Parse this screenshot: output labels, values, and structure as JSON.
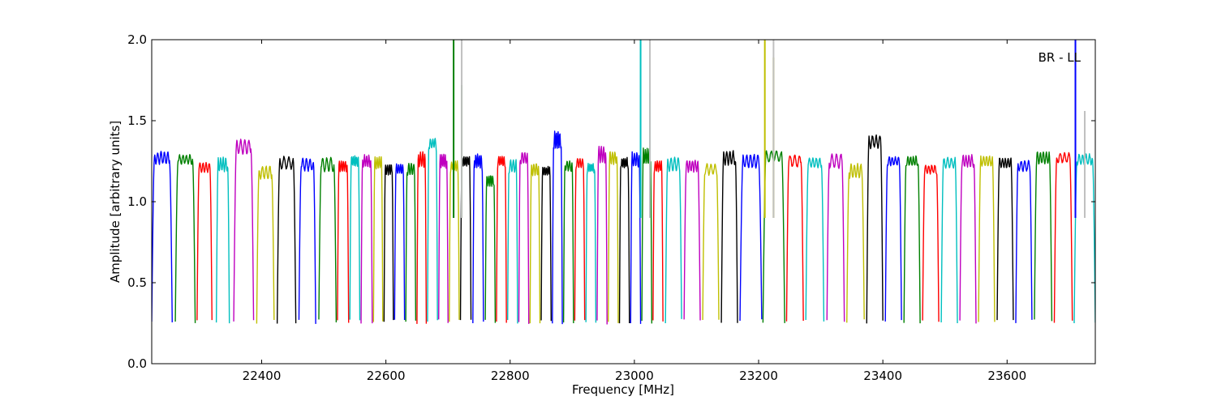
{
  "chart_data": {
    "type": "line",
    "annotation": "BR - LL",
    "xlabel": "Frequency [MHz]",
    "ylabel": "Amplitude [arbitrary units]",
    "xlim": [
      22223,
      23742
    ],
    "ylim": [
      0.0,
      2.0
    ],
    "x_ticks": [
      22400,
      22600,
      22800,
      23000,
      23200,
      23400,
      23600
    ],
    "x_tick_labels": [
      "22400",
      "22600",
      "22800",
      "23000",
      "23200",
      "23400",
      "23600"
    ],
    "y_ticks": [
      0.0,
      0.5,
      1.0,
      1.5,
      2.0
    ],
    "y_tick_labels": [
      "0.0",
      "0.5",
      "1.0",
      "1.5",
      "2.0"
    ],
    "grid": false,
    "colors": [
      "#0000ff",
      "#008000",
      "#ff0000",
      "#00bfbf",
      "#bf00bf",
      "#bfbf00",
      "#000000"
    ],
    "spike_color": "#c0c0c0",
    "sub_bands": [
      [
        22223,
        22256,
        1.27
      ],
      [
        22261,
        22293,
        1.26
      ],
      [
        22296,
        22320,
        1.21
      ],
      [
        22327,
        22348,
        1.23
      ],
      [
        22355,
        22387,
        1.34
      ],
      [
        22392,
        22420,
        1.18
      ],
      [
        22425,
        22455,
        1.24
      ],
      [
        22460,
        22487,
        1.23
      ],
      [
        22492,
        22520,
        1.23
      ],
      [
        22522,
        22540,
        1.22
      ],
      [
        22542,
        22558,
        1.25
      ],
      [
        22560,
        22578,
        1.25
      ],
      [
        22580,
        22595,
        1.24
      ],
      [
        22597,
        22612,
        1.2
      ],
      [
        22614,
        22630,
        1.2
      ],
      [
        22632,
        22648,
        1.2
      ],
      [
        22650,
        22665,
        1.26
      ],
      [
        22667,
        22683,
        1.36
      ],
      [
        22685,
        22700,
        1.25
      ],
      [
        22702,
        22718,
        1.22
      ],
      [
        22720,
        22737,
        1.25
      ],
      [
        22740,
        22757,
        1.25
      ],
      [
        22760,
        22776,
        1.13
      ],
      [
        22778,
        22794,
        1.25
      ],
      [
        22796,
        22812,
        1.22
      ],
      [
        22814,
        22830,
        1.27
      ],
      [
        22832,
        22848,
        1.2
      ],
      [
        22850,
        22866,
        1.19
      ],
      [
        22868,
        22884,
        1.38
      ],
      [
        22886,
        22902,
        1.22
      ],
      [
        22904,
        22920,
        1.24
      ],
      [
        22922,
        22938,
        1.21
      ],
      [
        22940,
        22956,
        1.29
      ],
      [
        22958,
        22974,
        1.27
      ],
      [
        22976,
        22992,
        1.24
      ],
      [
        22994,
        23010,
        1.26
      ],
      [
        23012,
        23028,
        1.28
      ],
      [
        23030,
        23046,
        1.22
      ],
      [
        23050,
        23076,
        1.23
      ],
      [
        23080,
        23106,
        1.22
      ],
      [
        23110,
        23136,
        1.2
      ],
      [
        23140,
        23166,
        1.27
      ],
      [
        23170,
        23205,
        1.25
      ],
      [
        23207,
        23242,
        1.28
      ],
      [
        23245,
        23272,
        1.25
      ],
      [
        23276,
        23305,
        1.24
      ],
      [
        23310,
        23338,
        1.25
      ],
      [
        23342,
        23370,
        1.19
      ],
      [
        23374,
        23400,
        1.37
      ],
      [
        23404,
        23430,
        1.25
      ],
      [
        23434,
        23460,
        1.25
      ],
      [
        23464,
        23490,
        1.2
      ],
      [
        23494,
        23520,
        1.24
      ],
      [
        23524,
        23550,
        1.25
      ],
      [
        23554,
        23580,
        1.25
      ],
      [
        23584,
        23610,
        1.24
      ],
      [
        23614,
        23640,
        1.22
      ],
      [
        23644,
        23672,
        1.27
      ],
      [
        23676,
        23705,
        1.27
      ],
      [
        23708,
        23742,
        1.26
      ]
    ],
    "spikes": [
      {
        "x": 22709,
        "y": 2.0,
        "color": "#008000"
      },
      {
        "x": 22722,
        "y": 1.72,
        "color": "#008000"
      },
      {
        "x": 22722,
        "y": 2.0,
        "color": "#c0c0c0"
      },
      {
        "x": 23010,
        "y": 2.0,
        "color": "#00bfbf"
      },
      {
        "x": 23025,
        "y": 1.67,
        "color": "#00bfbf"
      },
      {
        "x": 23025,
        "y": 2.0,
        "color": "#c0c0c0"
      },
      {
        "x": 23210,
        "y": 2.0,
        "color": "#bfbf00"
      },
      {
        "x": 23224,
        "y": 1.89,
        "color": "#bfbf00"
      },
      {
        "x": 23224,
        "y": 2.0,
        "color": "#c0c0c0"
      },
      {
        "x": 23710,
        "y": 2.0,
        "color": "#0000ff"
      },
      {
        "x": 23725,
        "y": 1.56,
        "color": "#c0c0c0"
      }
    ]
  }
}
